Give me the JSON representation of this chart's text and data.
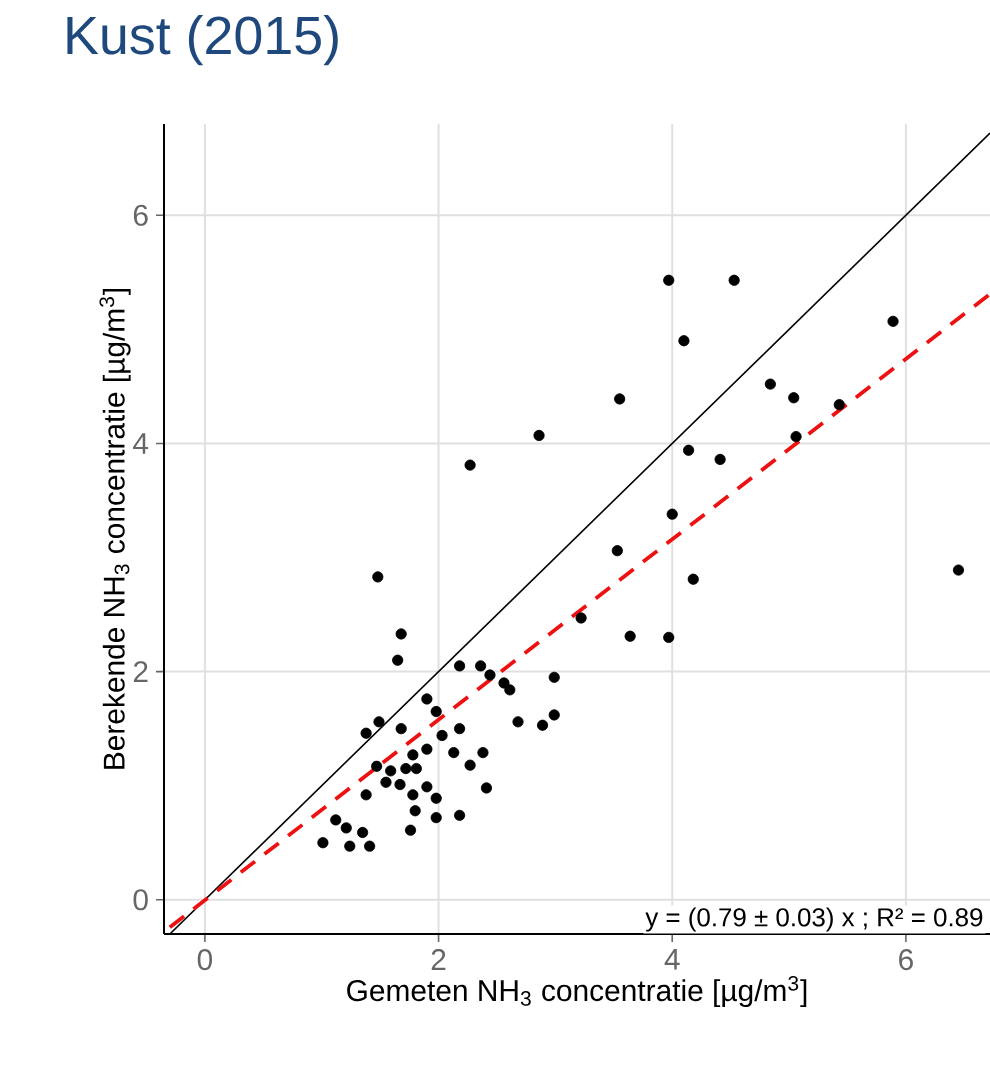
{
  "chart_data": {
    "type": "scatter",
    "title": "Kust (2015)",
    "xlabel": "Gemeten NH$_{3}$ concentratie [µg/m$^{3}$]",
    "ylabel": "Berekende NH$_{3}$ concentratie [µg/m$^{3}$]",
    "annotations": [
      "y = (0.79 ± 0.03) x ; R² = 0.89"
    ],
    "xlim": [
      -0.35,
      6.72
    ],
    "ylim": [
      -0.3,
      6.8
    ],
    "xticks": [
      0,
      2,
      4,
      6
    ],
    "yticks": [
      0,
      2,
      4,
      6
    ],
    "grid": true,
    "marker": "circle",
    "series": [
      {
        "type": "line",
        "color": "#000000",
        "line_style": "solid",
        "marker": "none",
        "x": [
          -0.3,
          6.72
        ],
        "values": [
          -0.3,
          6.72
        ]
      },
      {
        "type": "line",
        "color": "#ee1111",
        "line_style": "dashed",
        "marker": "none",
        "x": [
          -0.3,
          6.72
        ],
        "values": [
          -0.24,
          5.31
        ]
      },
      {
        "type": "scatter",
        "color": "#000000",
        "x": [
          1.48,
          1.68,
          1.65,
          2.18,
          2.36,
          2.44,
          2.56,
          2.61,
          2.99,
          1.9,
          1.98,
          1.49,
          1.38,
          1.68,
          2.18,
          2.03,
          2.68,
          2.89,
          2.99,
          1.9,
          1.78,
          2.13,
          2.38,
          2.27,
          1.47,
          1.59,
          1.72,
          1.81,
          1.55,
          1.67,
          1.9,
          2.41,
          1.38,
          1.78,
          1.98,
          1.8,
          1.98,
          2.18,
          1.76,
          1.12,
          1.21,
          1.35,
          1.01,
          1.24,
          1.41,
          3.53,
          3.22,
          3.64,
          3.97,
          4.53,
          4.1,
          3.55,
          2.86,
          2.27,
          4.84,
          5.04,
          5.43,
          5.89,
          5.06,
          4.14,
          4.41,
          4.0,
          4.18,
          6.45,
          3.97
        ],
        "values": [
          2.83,
          2.33,
          2.1,
          2.05,
          2.05,
          1.97,
          1.9,
          1.84,
          1.95,
          1.76,
          1.65,
          1.56,
          1.46,
          1.5,
          1.5,
          1.44,
          1.56,
          1.53,
          1.62,
          1.32,
          1.27,
          1.29,
          1.29,
          1.18,
          1.17,
          1.13,
          1.15,
          1.15,
          1.03,
          1.01,
          0.99,
          0.98,
          0.92,
          0.92,
          0.89,
          0.78,
          0.72,
          0.74,
          0.61,
          0.7,
          0.63,
          0.59,
          0.5,
          0.47,
          0.47,
          3.06,
          2.47,
          2.31,
          5.43,
          5.43,
          4.9,
          4.39,
          4.07,
          3.81,
          4.52,
          4.4,
          4.34,
          5.07,
          4.06,
          3.94,
          3.86,
          3.38,
          2.81,
          2.89,
          2.3
        ]
      }
    ]
  }
}
